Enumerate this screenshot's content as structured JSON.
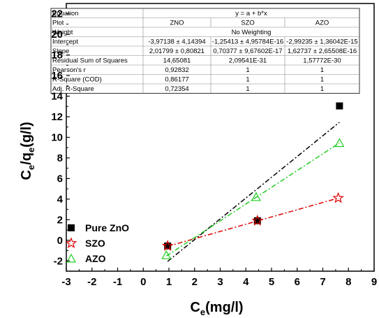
{
  "chart_data": {
    "type": "scatter",
    "xlabel_main": "C",
    "xlabel_sub": "e",
    "xlabel_rest": "(mg/l)",
    "ylabel_main": "C",
    "ylabel_sub1": "e",
    "ylabel_mid": "/q",
    "ylabel_sub2": "e",
    "ylabel_rest": "(g/l)",
    "xlim": [
      -3,
      9
    ],
    "ylim": [
      -3,
      23
    ],
    "xticks": [
      -3,
      -2,
      -1,
      0,
      1,
      2,
      3,
      4,
      5,
      6,
      7,
      8,
      9
    ],
    "yticks": [
      -2,
      0,
      2,
      4,
      6,
      8,
      10,
      12,
      14,
      16,
      18,
      20,
      22
    ],
    "series": [
      {
        "name": "Pure ZnO",
        "marker": "square",
        "color": "#000000",
        "x": [
          0.95,
          4.45,
          7.65
        ],
        "y": [
          -0.55,
          1.9,
          13.05
        ],
        "fit": {
          "intercept": -3.97138,
          "slope": 2.01799,
          "x_range": [
            0.95,
            7.65
          ]
        }
      },
      {
        "name": "SZO",
        "marker": "star",
        "color": "#dd0000",
        "x": [
          0.95,
          4.45,
          7.6
        ],
        "y": [
          -0.55,
          1.9,
          4.1
        ],
        "fit": {
          "intercept": -1.25413,
          "slope": 0.70377,
          "x_range": [
            0.95,
            7.6
          ]
        }
      },
      {
        "name": "AZO",
        "marker": "triangle",
        "color": "#22cc22",
        "x": [
          0.9,
          4.4,
          7.65
        ],
        "y": [
          -1.45,
          4.2,
          9.45
        ],
        "fit": {
          "intercept": -2.99235,
          "slope": 1.62737,
          "x_range": [
            0.9,
            7.65
          ]
        }
      }
    ],
    "legend": {
      "position": "bottom-left",
      "entries": [
        "Pure ZnO",
        "SZO",
        "AZO"
      ]
    },
    "fit_table": {
      "rows": [
        {
          "label": "Equation",
          "merged": "y = a + b*x"
        },
        {
          "label": "Plot",
          "cells": [
            "ZNO",
            "SZO",
            "AZO"
          ]
        },
        {
          "label": "Weight",
          "merged": "No Weighting"
        },
        {
          "label": "Intercept",
          "cells": [
            "-3,97138 ± 4,14394",
            "-1,25413 ± 4,95784E-16",
            "-2,99235 ± 1,36042E-15"
          ]
        },
        {
          "label": "Slope",
          "cells": [
            "2,01799 ± 0,80821",
            "0,70377 ± 9,67602E-17",
            "1,62737 ± 2,65508E-16"
          ]
        },
        {
          "label": "Residual Sum of Squares",
          "cells": [
            "14,65081",
            "2,09541E-31",
            "1,57772E-30"
          ]
        },
        {
          "label": "Pearson's r",
          "cells": [
            "0,92832",
            "1",
            "1"
          ]
        },
        {
          "label": "R-Square (COD)",
          "cells": [
            "0,86177",
            "1",
            "1"
          ]
        },
        {
          "label": "Adj. R-Square",
          "cells": [
            "0,72354",
            "1",
            "1"
          ]
        }
      ]
    }
  }
}
